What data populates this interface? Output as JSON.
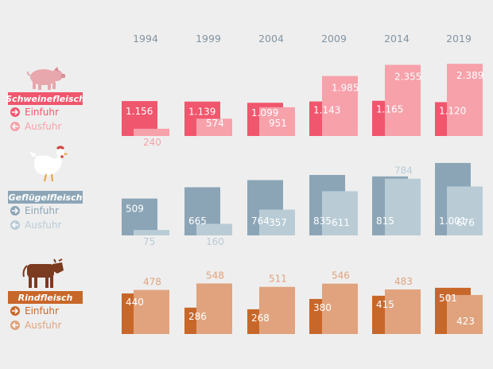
{
  "chart_data": {
    "type": "bar",
    "years": [
      "1994",
      "1999",
      "2004",
      "2009",
      "2014",
      "2019"
    ],
    "panels": [
      {
        "id": "schwein",
        "label": "Schweinefleisch",
        "icon": "pig-icon",
        "color_import": "#f0566d",
        "color_export": "#f7a1ab",
        "series": [
          {
            "name": "Einfuhr",
            "values": [
              1156,
              1139,
              1099,
              1143,
              1165,
              1120
            ],
            "labels": [
              "1.156",
              "1.139",
              "1.099",
              "1.143",
              "1.165",
              "1.120"
            ]
          },
          {
            "name": "Ausfuhr",
            "values": [
              240,
              574,
              951,
              1985,
              2355,
              2389
            ],
            "labels": [
              "240",
              "574",
              "951",
              "1.985",
              "2.355",
              "2.389"
            ]
          }
        ]
      },
      {
        "id": "gefluegel",
        "label": "Geflügelfleisch",
        "icon": "chicken-icon",
        "color_import": "#8ba5b6",
        "color_export": "#b9ccd6",
        "series": [
          {
            "name": "Einfuhr",
            "values": [
              509,
              665,
              764,
              835,
              815,
              1001
            ],
            "labels": [
              "509",
              "665",
              "764",
              "835",
              "815",
              "1.001"
            ]
          },
          {
            "name": "Ausfuhr",
            "values": [
              75,
              160,
              357,
              611,
              784,
              676
            ],
            "labels": [
              "75",
              "160",
              "357",
              "611",
              "784",
              "676"
            ]
          }
        ]
      },
      {
        "id": "rind",
        "label": "Rindfleisch",
        "icon": "cow-icon",
        "color_import": "#c8672a",
        "color_export": "#e0a37d",
        "series": [
          {
            "name": "Einfuhr",
            "values": [
              440,
              286,
              268,
              380,
              415,
              501
            ],
            "labels": [
              "440",
              "286",
              "268",
              "380",
              "415",
              "501"
            ]
          },
          {
            "name": "Ausfuhr",
            "values": [
              478,
              548,
              511,
              546,
              483,
              423
            ],
            "labels": [
              "478",
              "548",
              "511",
              "546",
              "483",
              "423"
            ]
          }
        ]
      }
    ],
    "legend": {
      "import_label": "Einfuhr",
      "export_label": "Ausfuhr",
      "import_icon": "arrow-right-icon",
      "export_icon": "arrow-left-icon"
    },
    "grid": false
  },
  "colors": {
    "background": "#eeeeee",
    "year_label": "#8494a2"
  }
}
